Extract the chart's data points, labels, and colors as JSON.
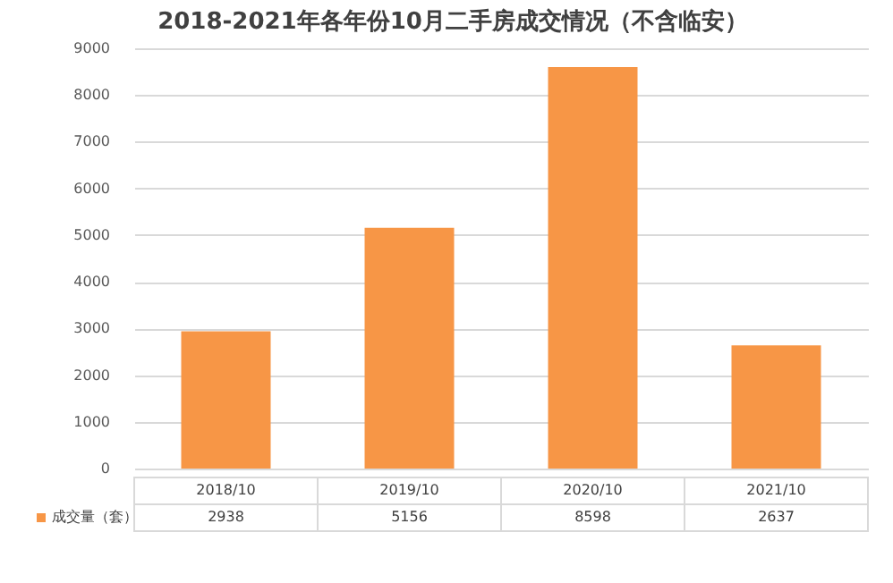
{
  "chart_data": {
    "type": "bar",
    "title": "2018-2021年各年份10月二手房成交情况（不含临安）",
    "categories": [
      "2018/10",
      "2019/10",
      "2020/10",
      "2021/10"
    ],
    "series": [
      {
        "name": "成交量（套）",
        "color": "#f79646",
        "values": [
          2938,
          5156,
          8598,
          2637
        ]
      }
    ],
    "ylim": [
      0,
      9000
    ],
    "yticks": [
      0,
      1000,
      2000,
      3000,
      4000,
      5000,
      6000,
      7000,
      8000,
      9000
    ],
    "grid": "y",
    "legend": "bottom left",
    "data_labels": true
  }
}
